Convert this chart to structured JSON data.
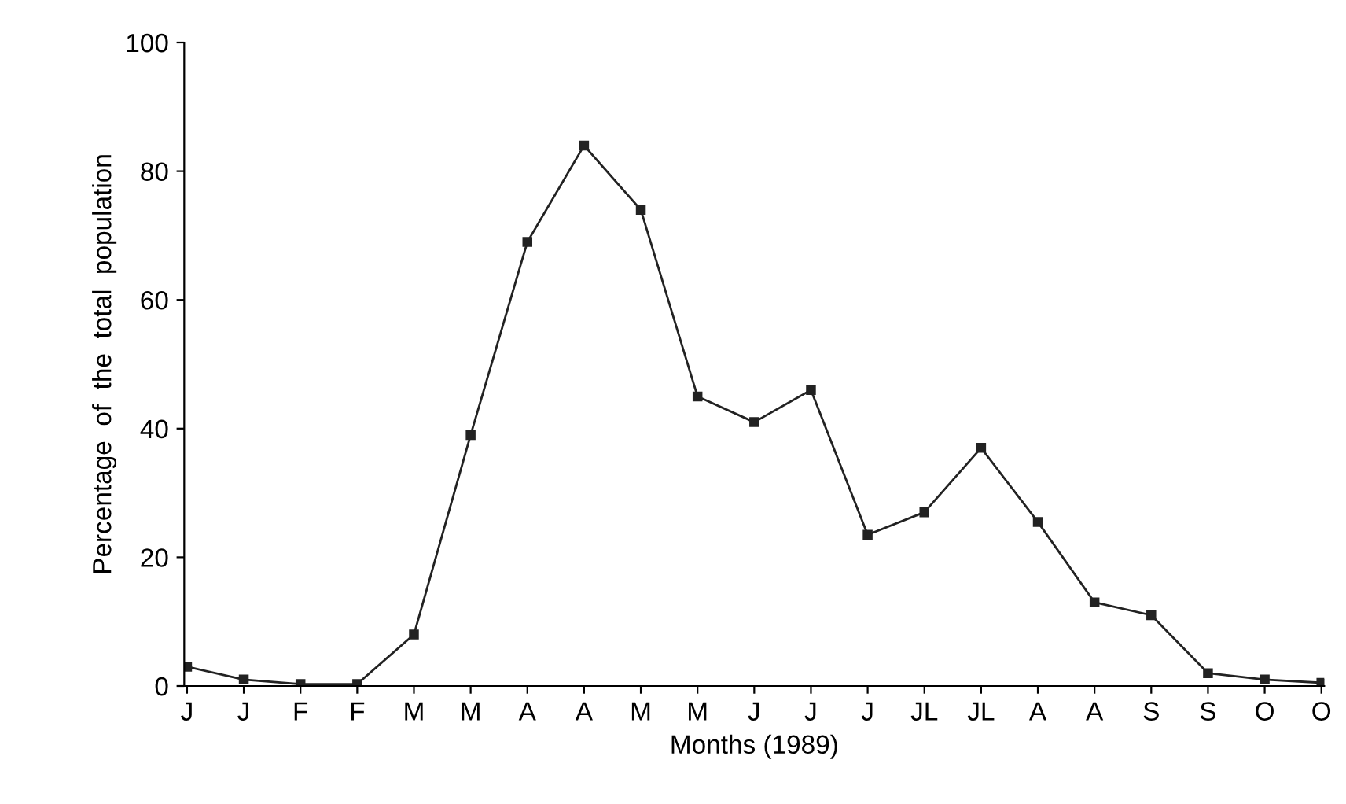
{
  "chart_data": {
    "type": "line",
    "xlabel": "Months (1989)",
    "ylabel": "Percentage  of  the  total  population",
    "categories": [
      "J",
      "J",
      "F",
      "F",
      "M",
      "M",
      "A",
      "A",
      "M",
      "M",
      "J",
      "J",
      "J",
      "JL",
      "JL",
      "A",
      "A",
      "S",
      "S",
      "O",
      "O"
    ],
    "series": [
      {
        "color": "#222222",
        "values": [
          3,
          1,
          0.3,
          0.3,
          8,
          39,
          69,
          84,
          74,
          45,
          41,
          46,
          23.5,
          27,
          37,
          25.5,
          13,
          11,
          2,
          1,
          0.5
        ]
      }
    ],
    "ylim": [
      0,
      100
    ],
    "yticks": [
      0,
      20,
      40,
      60,
      80,
      100
    ],
    "grid": false,
    "legend": false,
    "marker": "square",
    "line_style": "solid"
  }
}
